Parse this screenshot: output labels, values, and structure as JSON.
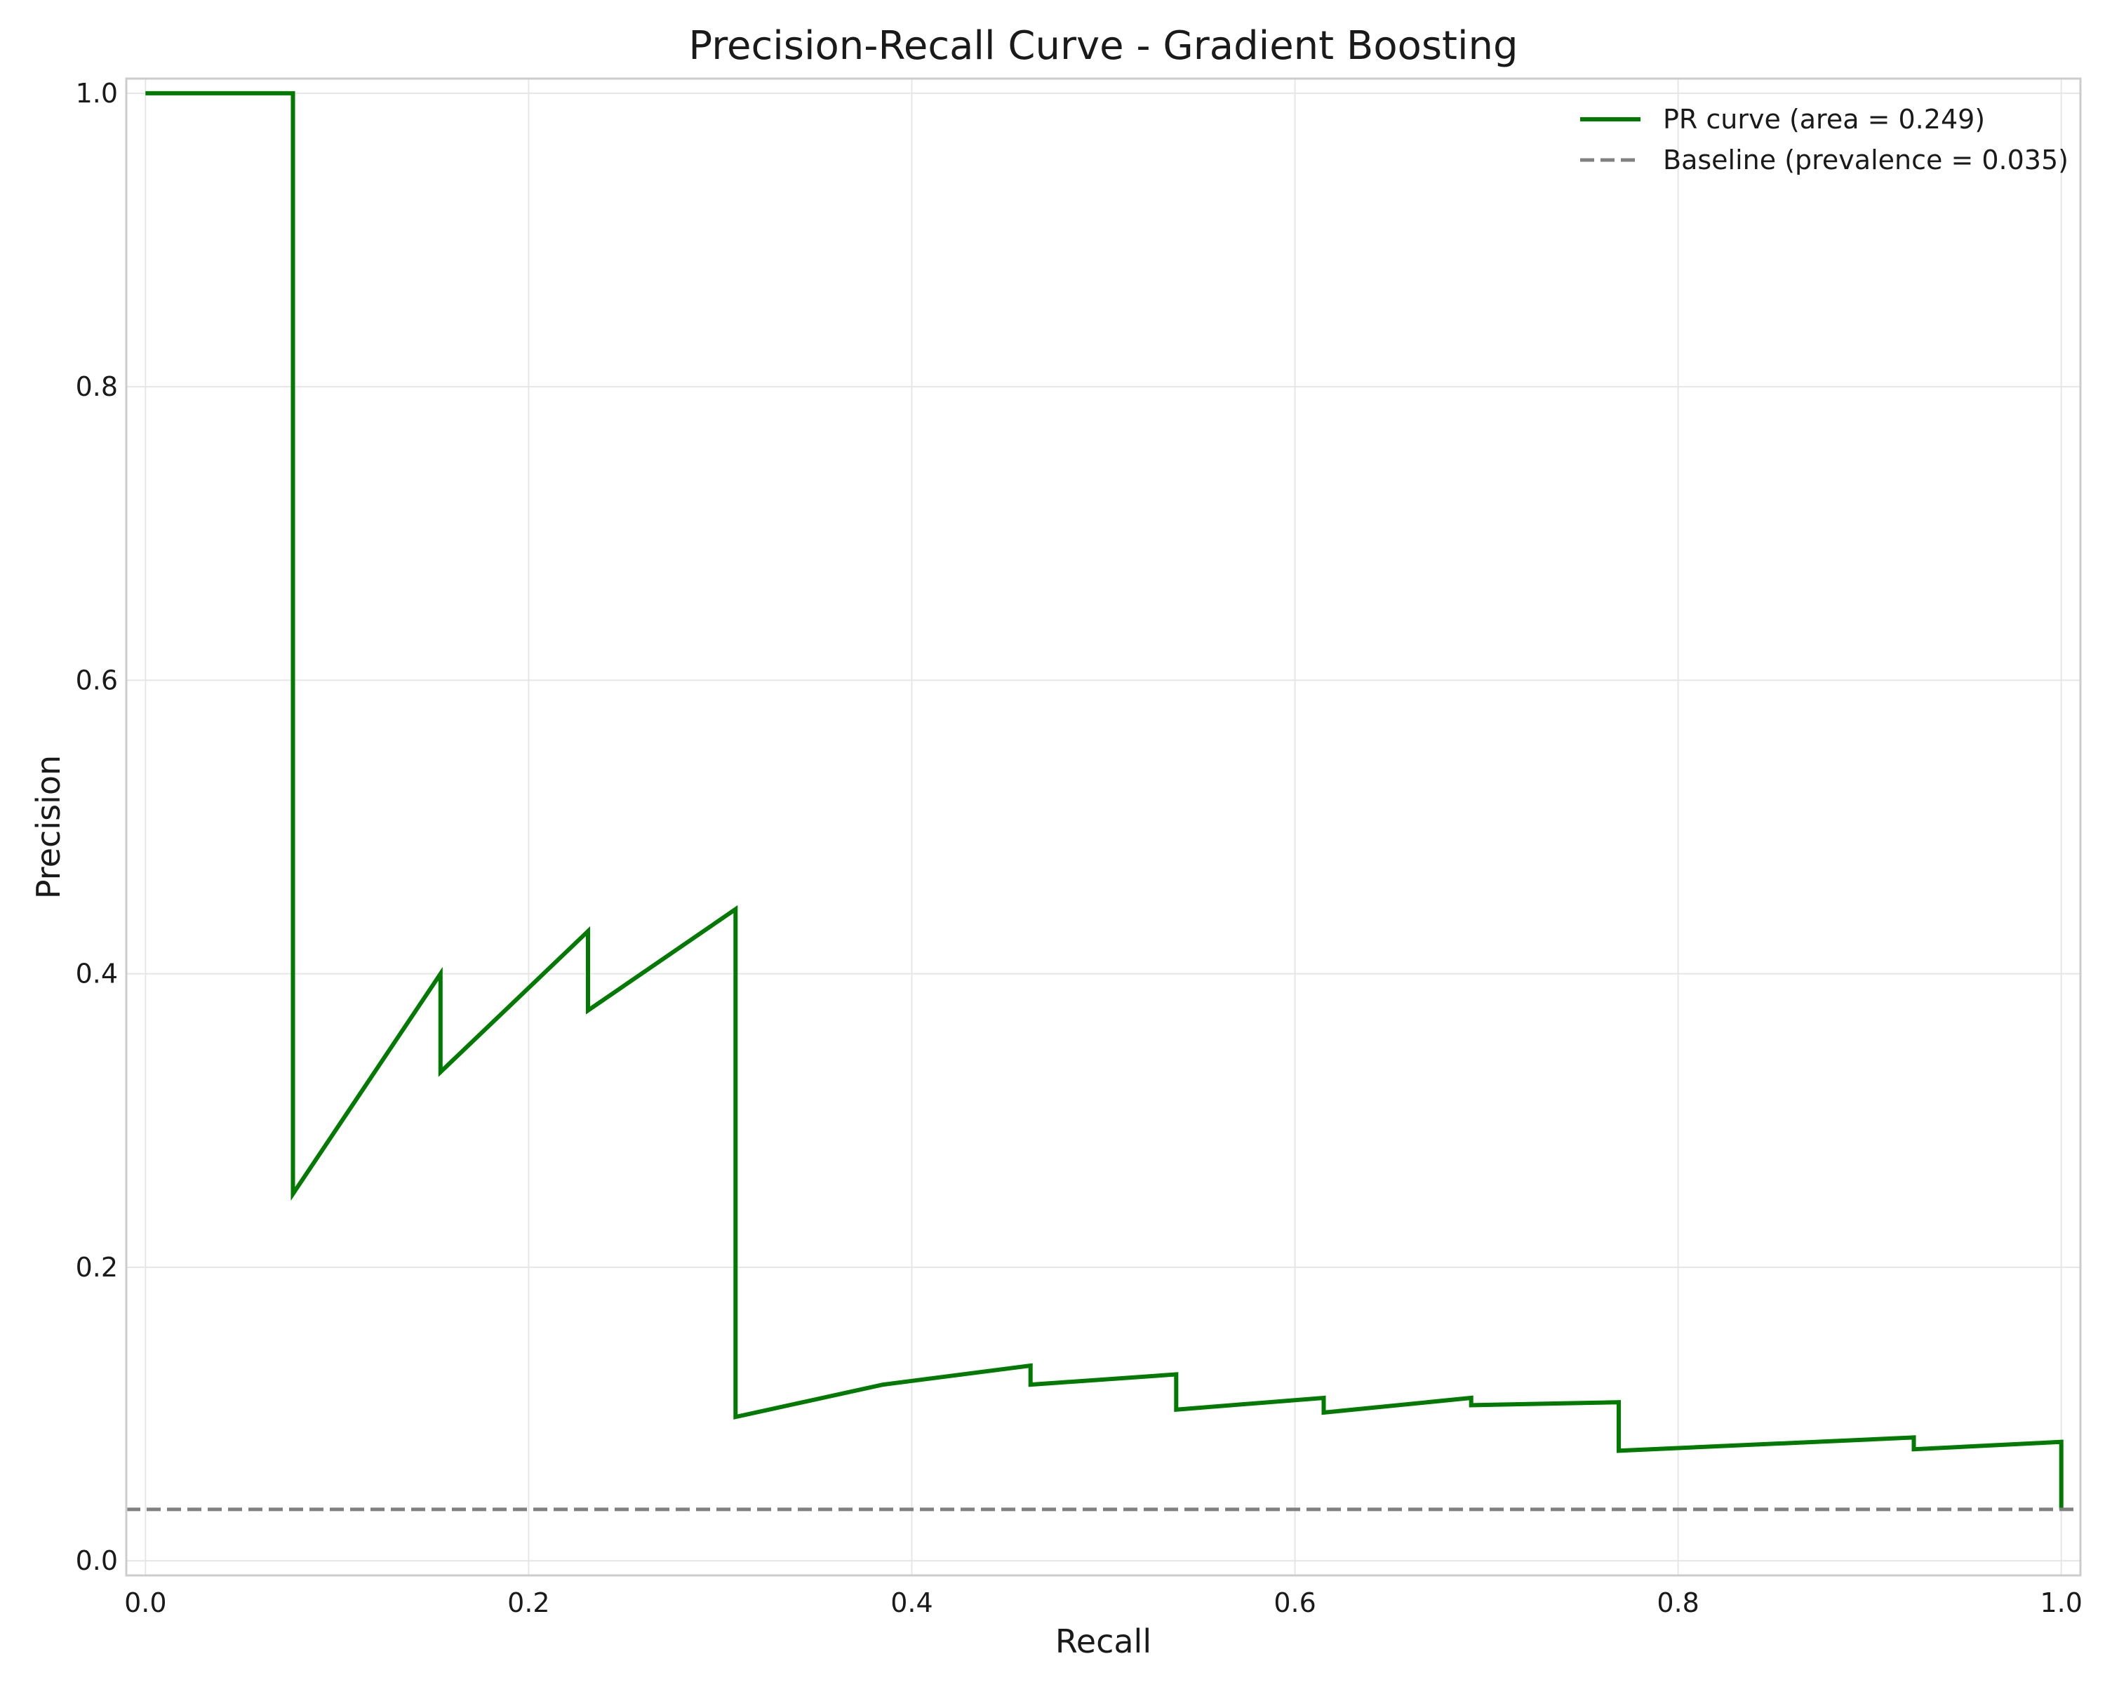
{
  "chart_data": {
    "type": "line",
    "title": "Precision-Recall Curve - Gradient Boosting",
    "xlabel": "Recall",
    "ylabel": "Precision",
    "xlim": [
      -0.01,
      1.01
    ],
    "ylim": [
      -0.01,
      1.01
    ],
    "grid": true,
    "legend_position": "top-right",
    "x_ticks": [
      "0.0",
      "0.2",
      "0.4",
      "0.6",
      "0.8",
      "1.0"
    ],
    "y_ticks": [
      "0.0",
      "0.2",
      "0.4",
      "0.6",
      "0.8",
      "1.0"
    ],
    "series": [
      {
        "name": "PR curve (area = 0.249)",
        "style": "solid",
        "color": "#007a00",
        "x": [
          0.0,
          0.077,
          0.077,
          0.154,
          0.154,
          0.231,
          0.231,
          0.308,
          0.308,
          0.385,
          0.462,
          0.462,
          0.538,
          0.538,
          0.615,
          0.615,
          0.692,
          0.692,
          0.769,
          0.769,
          0.923,
          0.923,
          1.0,
          1.0
        ],
        "y": [
          1.0,
          1.0,
          0.25,
          0.4,
          0.333,
          0.429,
          0.375,
          0.444,
          0.098,
          0.12,
          0.133,
          0.12,
          0.127,
          0.103,
          0.111,
          0.101,
          0.111,
          0.106,
          0.108,
          0.075,
          0.084,
          0.076,
          0.081,
          0.035
        ]
      },
      {
        "name": "Baseline (prevalence = 0.035)",
        "style": "dashed",
        "color": "#808080",
        "x": [
          -0.01,
          1.01
        ],
        "y": [
          0.035,
          0.035
        ]
      }
    ]
  }
}
